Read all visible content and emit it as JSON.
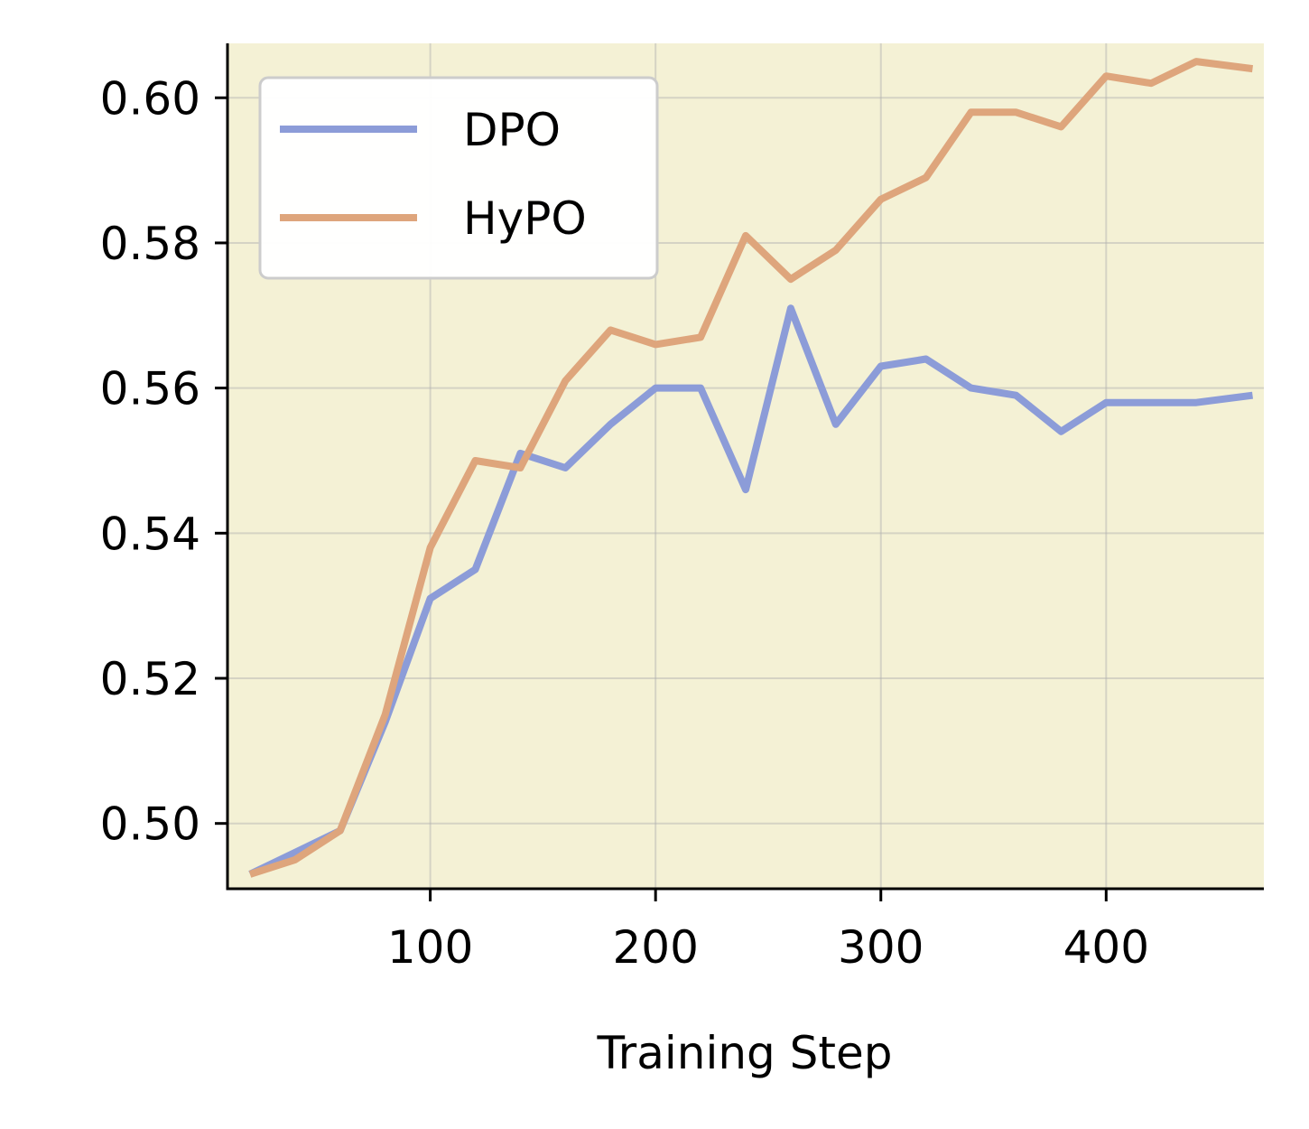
{
  "chart_data": {
    "type": "line",
    "title": "",
    "xlabel": "Training Step",
    "ylabel": "",
    "xlim": [
      10,
      470
    ],
    "ylim": [
      0.491,
      0.6075
    ],
    "xticks": [
      100,
      200,
      300,
      400
    ],
    "xtick_labels": [
      "100",
      "200",
      "300",
      "400"
    ],
    "yticks": [
      0.5,
      0.52,
      0.54,
      0.56,
      0.58,
      0.6
    ],
    "ytick_labels": [
      "0.50",
      "0.52",
      "0.54",
      "0.56",
      "0.58",
      "0.60"
    ],
    "grid": true,
    "legend_position": "top-left",
    "background_color": "#f4f1d5",
    "x": [
      20,
      40,
      60,
      80,
      100,
      120,
      140,
      160,
      180,
      200,
      220,
      240,
      260,
      280,
      300,
      320,
      340,
      360,
      380,
      400,
      420,
      440,
      465
    ],
    "series": [
      {
        "name": "DPO",
        "color": "#8c9cd8",
        "values": [
          0.493,
          0.496,
          0.499,
          0.514,
          0.531,
          0.535,
          0.551,
          0.549,
          0.555,
          0.56,
          0.56,
          0.546,
          0.571,
          0.555,
          0.563,
          0.564,
          0.56,
          0.559,
          0.554,
          0.558,
          0.558,
          0.558,
          0.559
        ]
      },
      {
        "name": "HyPO",
        "color": "#dea57c",
        "values": [
          0.493,
          0.495,
          0.499,
          0.515,
          0.538,
          0.55,
          0.549,
          0.561,
          0.568,
          0.566,
          0.567,
          0.581,
          0.575,
          0.579,
          0.586,
          0.589,
          0.598,
          0.598,
          0.596,
          0.603,
          0.602,
          0.605,
          0.604
        ]
      }
    ]
  }
}
